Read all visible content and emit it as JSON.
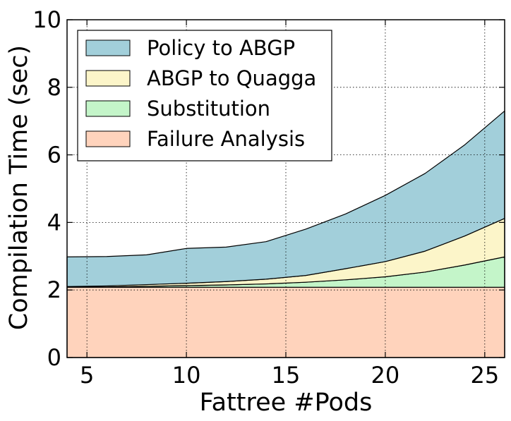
{
  "chart_data": {
    "type": "area",
    "stacked": true,
    "xlabel": "Fattree #Pods",
    "ylabel": "Compilation Time (sec)",
    "xlim": [
      4,
      26
    ],
    "ylim": [
      0,
      10
    ],
    "xticks": [
      5,
      10,
      15,
      20,
      25
    ],
    "yticks": [
      0,
      2,
      4,
      6,
      8,
      10
    ],
    "grid": "dotted",
    "legend_position": "top-left",
    "x": [
      4,
      6,
      8,
      10,
      12,
      14,
      16,
      18,
      20,
      22,
      24,
      26
    ],
    "series": [
      {
        "name": "Failure Analysis",
        "color": "#ffd3bc",
        "values": [
          2.08,
          2.08,
          2.08,
          2.08,
          2.08,
          2.08,
          2.08,
          2.08,
          2.08,
          2.08,
          2.08,
          2.08
        ]
      },
      {
        "name": "Substitution",
        "color": "#c4f5c9",
        "values": [
          0.0,
          0.01,
          0.03,
          0.05,
          0.07,
          0.1,
          0.15,
          0.22,
          0.31,
          0.45,
          0.66,
          0.9
        ]
      },
      {
        "name": "ABGP to Quagga",
        "color": "#fcf5c9",
        "values": [
          0.02,
          0.03,
          0.05,
          0.07,
          0.1,
          0.14,
          0.2,
          0.33,
          0.45,
          0.62,
          0.86,
          1.14
        ]
      },
      {
        "name": "Policy to ABGP",
        "color": "#a2cfda",
        "values": [
          0.88,
          0.87,
          0.88,
          1.03,
          1.02,
          1.11,
          1.37,
          1.62,
          1.96,
          2.3,
          2.7,
          3.18
        ]
      }
    ]
  }
}
